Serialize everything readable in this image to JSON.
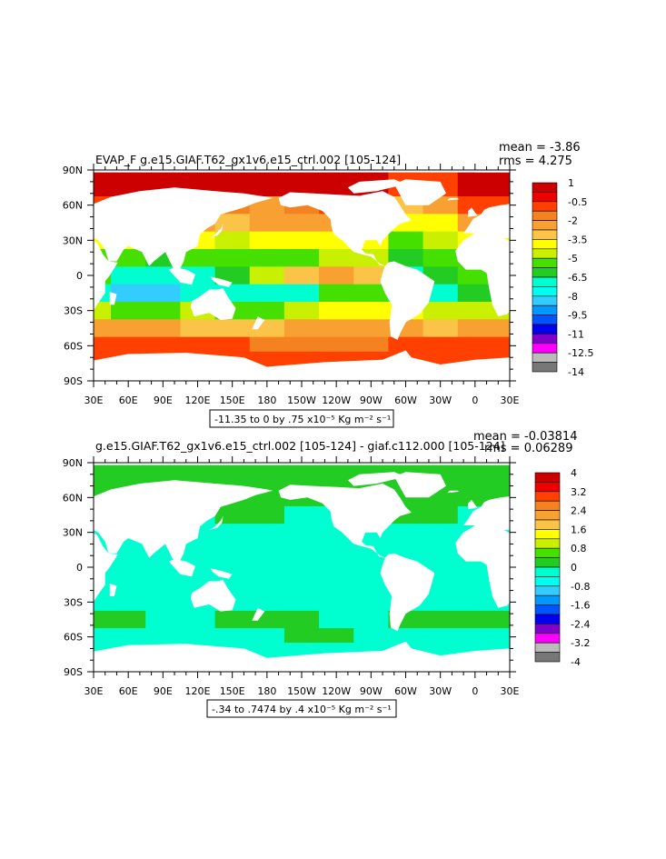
{
  "chart_data": [
    {
      "type": "heatmap",
      "title": "EVAP_F g.e15.GIAF.T62_gx1v6.e15_ctrl.002 [105-124]",
      "stats": [
        "mean = -3.86",
        "rms = 4.275"
      ],
      "x_ticks": [
        "30E",
        "60E",
        "90E",
        "120E",
        "150E",
        "180",
        "150W",
        "120W",
        "90W",
        "60W",
        "30W",
        "0",
        "30E"
      ],
      "y_ticks": [
        "90N",
        "60N",
        "30N",
        "0",
        "30S",
        "60S",
        "90S"
      ],
      "xlim": [
        30,
        390
      ],
      "ylim": [
        -90,
        90
      ],
      "legend_labels": [
        "1",
        "-0.5",
        "-2",
        "-3.5",
        "-5",
        "-6.5",
        "-8",
        "-9.5",
        "-11",
        "-12.5",
        "-14"
      ],
      "legend_colors": [
        "#cc0000",
        "#ee0000",
        "#ff4000",
        "#f58220",
        "#f9a033",
        "#fbc448",
        "#ffff00",
        "#c8f000",
        "#45e000",
        "#22cc22",
        "#00ffd0",
        "#00ffee",
        "#33ccff",
        "#0099ff",
        "#0055ff",
        "#0000ee",
        "#8000cc",
        "#ff00ff",
        "#bbbbbb",
        "#777777"
      ],
      "contour_note": "-11.35 to 0 by .75 x10⁻⁵ Kg m⁻² s⁻¹",
      "field": {
        "lon": [
          30,
          60,
          90,
          120,
          150,
          180,
          210,
          240,
          270,
          300,
          330,
          360,
          390
        ],
        "lat": [
          75,
          60,
          45,
          30,
          15,
          0,
          -15,
          -30,
          -45,
          -60,
          -70
        ],
        "values": [
          [
            0.5,
            0.5,
            0.5,
            0.5,
            0.5,
            0.5,
            0.5,
            0.5,
            0.5,
            -0.5,
            -0.5,
            0.5,
            0.5
          ],
          [
            -0.5,
            -0.5,
            -0.5,
            -0.5,
            -1.5,
            -2,
            -1.5,
            -1,
            -1,
            -3,
            -2.5,
            -0.5,
            -0.5
          ],
          [
            -2,
            -2,
            -2,
            -2.5,
            -3,
            -2.5,
            -2,
            -2,
            -2.5,
            -4,
            -3.5,
            -2.5,
            -2
          ],
          [
            -3.5,
            -3.5,
            -3.5,
            -4,
            -4.5,
            -4,
            -3.5,
            -3.5,
            -4,
            -5,
            -4.5,
            -3.5,
            -3.5
          ],
          [
            -5,
            -5.5,
            -6,
            -5.5,
            -5,
            -5.5,
            -5,
            -4.5,
            -4.5,
            -6,
            -5.5,
            -5,
            -5
          ],
          [
            -5,
            -6.5,
            -7,
            -6.5,
            -6,
            -4.5,
            -3,
            -2.5,
            -3,
            -6.5,
            -6,
            -5,
            -5
          ],
          [
            -6.5,
            -8,
            -8.5,
            -7,
            -6.5,
            -7,
            -6.5,
            -5.5,
            -5,
            -6.5,
            -6.5,
            -6,
            -6.5
          ],
          [
            -4.5,
            -5,
            -5.5,
            -4.5,
            -5,
            -5,
            -4.5,
            -4,
            -3.5,
            -4,
            -4.5,
            -4.5,
            -4.5
          ],
          [
            -2.5,
            -2.5,
            -2.5,
            -3,
            -3,
            -3,
            -2.5,
            -2.5,
            -2.5,
            -2.5,
            -3,
            -2.5,
            -2.5
          ],
          [
            -1,
            -1,
            -1,
            -1,
            -1,
            -1.5,
            -1.5,
            -1.5,
            -1.5,
            -1,
            -1,
            -1,
            -1
          ],
          [
            -0.5,
            -0.5,
            -0.5,
            -0.5,
            -0.5,
            -0.5,
            -0.5,
            -0.5,
            -0.5,
            -0.5,
            -0.5,
            -0.5,
            -0.5
          ]
        ]
      }
    },
    {
      "type": "heatmap",
      "title": "g.e15.GIAF.T62_gx1v6.e15_ctrl.002 [105-124] - giaf.c112.000 [105-124]",
      "stats": [
        "mean = -0.03814",
        "rms = 0.06289"
      ],
      "x_ticks": [
        "30E",
        "60E",
        "90E",
        "120E",
        "150E",
        "180",
        "150W",
        "120W",
        "90W",
        "60W",
        "30W",
        "0",
        "30E"
      ],
      "y_ticks": [
        "90N",
        "60N",
        "30N",
        "0",
        "30S",
        "60S",
        "90S"
      ],
      "xlim": [
        30,
        390
      ],
      "ylim": [
        -90,
        90
      ],
      "legend_labels": [
        "4",
        "3.2",
        "2.4",
        "1.6",
        "0.8",
        "0",
        "-0.8",
        "-1.6",
        "-2.4",
        "-3.2",
        "-4"
      ],
      "legend_colors": [
        "#cc0000",
        "#ee0000",
        "#ff4000",
        "#f58220",
        "#f9a033",
        "#fbc448",
        "#ffff00",
        "#c8f000",
        "#45e000",
        "#22cc22",
        "#00ffd0",
        "#00ffee",
        "#33ccff",
        "#0099ff",
        "#0055ff",
        "#0000ee",
        "#8000cc",
        "#ff00ff",
        "#bbbbbb",
        "#777777"
      ],
      "contour_note": "-.34 to .7474 by .4 x10⁻⁵ Kg m⁻² s⁻¹",
      "field": {
        "lon": [
          30,
          60,
          90,
          120,
          150,
          180,
          210,
          240,
          270,
          300,
          330,
          360,
          390
        ],
        "lat": [
          75,
          60,
          45,
          30,
          15,
          0,
          -15,
          -30,
          -45,
          -60,
          -70
        ],
        "values": [
          [
            0.3,
            0.3,
            0.3,
            0.3,
            0.3,
            0.3,
            0.3,
            0.3,
            0.3,
            0.3,
            0.3,
            0.3,
            0.3
          ],
          [
            0.3,
            0.3,
            0.3,
            0.3,
            0.3,
            0.3,
            0.3,
            0.3,
            0.3,
            0.3,
            0.3,
            0.3,
            0.3
          ],
          [
            -0.3,
            -0.3,
            -0.3,
            -0.3,
            0.3,
            0.3,
            -0.3,
            -0.3,
            -0.3,
            0.3,
            0.3,
            -0.3,
            -0.3
          ],
          [
            -0.3,
            -0.3,
            -0.3,
            -0.3,
            -0.3,
            -0.3,
            -0.3,
            -0.3,
            -0.3,
            -0.3,
            -0.3,
            -0.3,
            -0.3
          ],
          [
            -0.3,
            -0.3,
            -0.3,
            -0.3,
            -0.3,
            -0.3,
            -0.3,
            -0.3,
            -0.3,
            -0.3,
            -0.3,
            -0.3,
            -0.3
          ],
          [
            -0.3,
            -0.3,
            -0.3,
            -0.3,
            -0.3,
            -0.3,
            -0.3,
            -0.3,
            -0.3,
            -0.3,
            -0.3,
            -0.3,
            -0.3
          ],
          [
            -0.3,
            -0.3,
            -0.3,
            -0.3,
            -0.3,
            -0.3,
            -0.3,
            -0.3,
            -0.3,
            -0.3,
            -0.3,
            -0.3,
            -0.3
          ],
          [
            -0.3,
            -0.3,
            -0.3,
            -0.3,
            -0.3,
            -0.3,
            -0.3,
            -0.3,
            -0.3,
            -0.3,
            -0.3,
            -0.3,
            -0.3
          ],
          [
            0.3,
            0.3,
            -0.3,
            -0.3,
            0.3,
            0.3,
            0.3,
            -0.3,
            -0.3,
            0.3,
            0.3,
            0.3,
            0.3
          ],
          [
            -0.3,
            -0.3,
            -0.3,
            -0.3,
            -0.3,
            -0.3,
            0.3,
            0.3,
            -0.3,
            -0.3,
            -0.3,
            -0.3,
            -0.3
          ],
          [
            -0.3,
            -0.3,
            -0.3,
            -0.3,
            -0.3,
            -0.3,
            -0.3,
            -0.3,
            -0.3,
            -0.3,
            -0.3,
            -0.3,
            -0.3
          ]
        ]
      }
    }
  ]
}
